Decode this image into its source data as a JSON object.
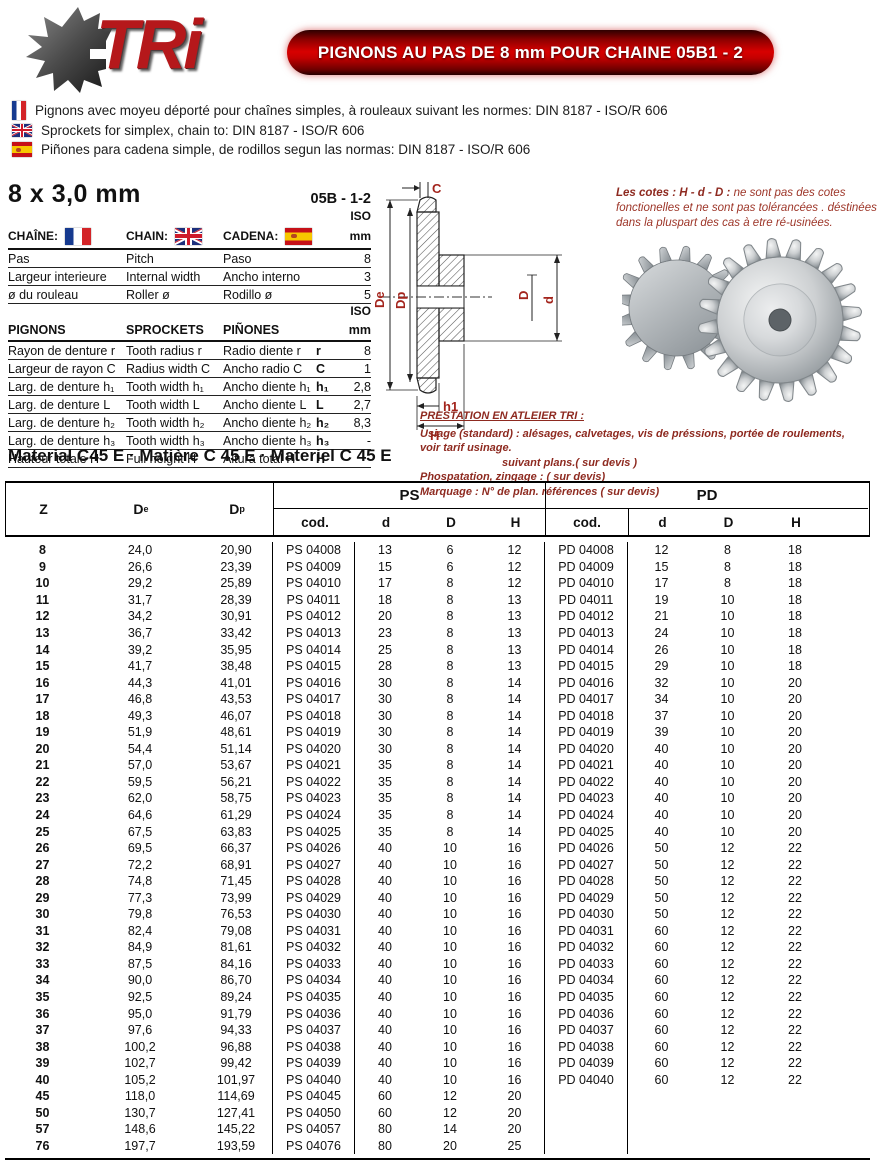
{
  "colors": {
    "banner_red": "#cc0000",
    "note_red": "#9d3528",
    "drawing_label_red": "#a3241c"
  },
  "header": {
    "logo_text": "TRi",
    "banner": "PIGNONS AU PAS DE 8 mm POUR CHAINE 05B1 - 2"
  },
  "intro": {
    "lines": [
      {
        "flag": "flag-france",
        "text": "Pignons avec moyeu déporté pour chaînes simples, à rouleaux suivant les normes: DIN 8187 - ISO/R 606"
      },
      {
        "flag": "flag-uk",
        "text": "Sprockets for simplex, chain to: DIN 8187 - ISO/R 606"
      },
      {
        "flag": "flag-spain",
        "text": "Piñones para cadena simple, de rodillos segun las normas: DIN 8187 - ISO/R 606"
      }
    ]
  },
  "spec": {
    "title": "8 x 3,0 mm",
    "ref": "05B - 1-2",
    "iso_label": "ISO",
    "mm_label": "mm",
    "chain_label_fr": "CHAÎNE:",
    "chain_label_en": "CHAIN:",
    "chain_label_es": "CADENA:",
    "chain_rows": [
      [
        "Pas",
        "Pitch",
        "Paso",
        "",
        "8"
      ],
      [
        "Largeur interieure",
        "Internal width",
        "Ancho interno",
        "",
        "3"
      ],
      [
        "ø du rouleau",
        "Roller ø",
        "Rodillo ø",
        "",
        "5"
      ]
    ],
    "pignons_label_fr": "PIGNONS",
    "pignons_label_en": "SPROCKETS",
    "pignons_label_es": "PIÑONES",
    "pignon_rows": [
      [
        "Rayon de denture r",
        "Tooth radius r",
        "Radio diente r",
        "r",
        "8"
      ],
      [
        "Largeur de rayon C",
        "Radius width C",
        "Ancho radio C",
        "C",
        "1"
      ],
      [
        "Larg. de denture h₁",
        "Tooth width h₁",
        "Ancho diente h₁",
        "h₁",
        "2,8"
      ],
      [
        "Larg. de denture L",
        "Tooth width L",
        "Ancho diente L",
        "L",
        "2,7"
      ],
      [
        "Larg. de denture h₂",
        "Tooth width h₂",
        "Ancho diente h₂",
        "h₂",
        "8,3"
      ],
      [
        "Larg. de denture h₃",
        "Tooth width h₃",
        "Ancho diente h₃",
        "h₃",
        "-"
      ],
      [
        "Hauteur totale H",
        "Full height H",
        "Altura total H",
        "H",
        "-"
      ]
    ]
  },
  "drawing": {
    "labels": {
      "c": "C",
      "de": "De",
      "dp": "Dp",
      "big_d": "D",
      "small_d": "d",
      "h1": "h1",
      "h": "H"
    }
  },
  "notes": {
    "cotes_lead": "Les cotes : H - d - D : ",
    "cotes_rest": "ne sont pas des cotes fonctionelles et ne sont pas tolérancées . déstinées dans la pluspart des cas à etre ré-usinées.",
    "prestation_title": "PRESTATION EN ATLEIER   TRI :",
    "prestation_line1": "Usiage  (standard) : alésages, calvetages, vis de préssions, portée de roulements,  voir tarif usinage.",
    "prestation_line2": "suivant plans.( sur devis )",
    "prestation_line3": "Phospatation, zingage : ( sur devis)",
    "prestation_line4": "Marquage : N° de plan. références ( sur devis)"
  },
  "material": "Material C45 E · Matière C 45 E · Materiel C 45 E",
  "table": {
    "headers": {
      "z": "Z",
      "de_main": "D",
      "de_sub": "e",
      "dp_main": "D",
      "dp_sub": "p",
      "ps": "PS",
      "pd": "PD",
      "ps_cols": [
        "cod.",
        "d",
        "D",
        "H"
      ],
      "pd_cols": [
        "cod.",
        "d",
        "D",
        "H"
      ]
    },
    "rows": [
      [
        "8",
        "24,0",
        "20,90",
        "PS 04008",
        "13",
        "6",
        "12",
        "PD 04008",
        "12",
        "8",
        "18",
        ""
      ],
      [
        "9",
        "26,6",
        "23,39",
        "PS 04009",
        "15",
        "6",
        "12",
        "PD 04009",
        "15",
        "8",
        "18",
        ""
      ],
      [
        "10",
        "29,2",
        "25,89",
        "PS 04010",
        "17",
        "8",
        "12",
        "PD 04010",
        "17",
        "8",
        "18",
        ""
      ],
      [
        "11",
        "31,7",
        "28,39",
        "PS 04011",
        "18",
        "8",
        "13",
        "PD 04011",
        "19",
        "10",
        "18",
        ""
      ],
      [
        "12",
        "34,2",
        "30,91",
        "PS 04012",
        "20",
        "8",
        "13",
        "PD 04012",
        "21",
        "10",
        "18",
        ""
      ],
      [
        "13",
        "36,7",
        "33,42",
        "PS 04013",
        "23",
        "8",
        "13",
        "PD 04013",
        "24",
        "10",
        "18",
        ""
      ],
      [
        "14",
        "39,2",
        "35,95",
        "PS 04014",
        "25",
        "8",
        "13",
        "PD 04014",
        "26",
        "10",
        "18",
        ""
      ],
      [
        "15",
        "41,7",
        "38,48",
        "PS 04015",
        "28",
        "8",
        "13",
        "PD 04015",
        "29",
        "10",
        "18",
        ""
      ],
      [
        "16",
        "44,3",
        "41,01",
        "PS 04016",
        "30",
        "8",
        "14",
        "PD 04016",
        "32",
        "10",
        "20",
        ""
      ],
      [
        "17",
        "46,8",
        "43,53",
        "PS 04017",
        "30",
        "8",
        "14",
        "PD 04017",
        "34",
        "10",
        "20",
        ""
      ],
      [
        "18",
        "49,3",
        "46,07",
        "PS 04018",
        "30",
        "8",
        "14",
        "PD 04018",
        "37",
        "10",
        "20",
        ""
      ],
      [
        "19",
        "51,9",
        "48,61",
        "PS 04019",
        "30",
        "8",
        "14",
        "PD 04019",
        "39",
        "10",
        "20",
        ""
      ],
      [
        "20",
        "54,4",
        "51,14",
        "PS 04020",
        "30",
        "8",
        "14",
        "PD 04020",
        "40",
        "10",
        "20",
        ""
      ],
      [
        "21",
        "57,0",
        "53,67",
        "PS 04021",
        "35",
        "8",
        "14",
        "PD 04021",
        "40",
        "10",
        "20",
        ""
      ],
      [
        "22",
        "59,5",
        "56,21",
        "PS 04022",
        "35",
        "8",
        "14",
        "PD 04022",
        "40",
        "10",
        "20",
        ""
      ],
      [
        "23",
        "62,0",
        "58,75",
        "PS 04023",
        "35",
        "8",
        "14",
        "PD 04023",
        "40",
        "10",
        "20",
        ""
      ],
      [
        "24",
        "64,6",
        "61,29",
        "PS 04024",
        "35",
        "8",
        "14",
        "PD 04024",
        "40",
        "10",
        "20",
        ""
      ],
      [
        "25",
        "67,5",
        "63,83",
        "PS 04025",
        "35",
        "8",
        "14",
        "PD 04025",
        "40",
        "10",
        "20",
        ""
      ],
      [
        "26",
        "69,5",
        "66,37",
        "PS 04026",
        "40",
        "10",
        "16",
        "PD 04026",
        "50",
        "12",
        "22",
        ""
      ],
      [
        "27",
        "72,2",
        "68,91",
        "PS 04027",
        "40",
        "10",
        "16",
        "PD 04027",
        "50",
        "12",
        "22",
        ""
      ],
      [
        "28",
        "74,8",
        "71,45",
        "PS 04028",
        "40",
        "10",
        "16",
        "PD 04028",
        "50",
        "12",
        "22",
        ""
      ],
      [
        "29",
        "77,3",
        "73,99",
        "PS 04029",
        "40",
        "10",
        "16",
        "PD 04029",
        "50",
        "12",
        "22",
        ""
      ],
      [
        "30",
        "79,8",
        "76,53",
        "PS 04030",
        "40",
        "10",
        "16",
        "PD 04030",
        "50",
        "12",
        "22",
        ""
      ],
      [
        "31",
        "82,4",
        "79,08",
        "PS 04031",
        "40",
        "10",
        "16",
        "PD 04031",
        "60",
        "12",
        "22",
        ""
      ],
      [
        "32",
        "84,9",
        "81,61",
        "PS 04032",
        "40",
        "10",
        "16",
        "PD 04032",
        "60",
        "12",
        "22",
        ""
      ],
      [
        "33",
        "87,5",
        "84,16",
        "PS 04033",
        "40",
        "10",
        "16",
        "PD 04033",
        "60",
        "12",
        "22",
        ""
      ],
      [
        "34",
        "90,0",
        "86,70",
        "PS 04034",
        "40",
        "10",
        "16",
        "PD 04034",
        "60",
        "12",
        "22",
        ""
      ],
      [
        "35",
        "92,5",
        "89,24",
        "PS 04035",
        "40",
        "10",
        "16",
        "PD 04035",
        "60",
        "12",
        "22",
        ""
      ],
      [
        "36",
        "95,0",
        "91,79",
        "PS 04036",
        "40",
        "10",
        "16",
        "PD 04036",
        "60",
        "12",
        "22",
        ""
      ],
      [
        "37",
        "97,6",
        "94,33",
        "PS 04037",
        "40",
        "10",
        "16",
        "PD 04037",
        "60",
        "12",
        "22",
        ""
      ],
      [
        "38",
        "100,2",
        "96,88",
        "PS 04038",
        "40",
        "10",
        "16",
        "PD 04038",
        "60",
        "12",
        "22",
        ""
      ],
      [
        "39",
        "102,7",
        "99,42",
        "PS 04039",
        "40",
        "10",
        "16",
        "PD 04039",
        "60",
        "12",
        "22",
        ""
      ],
      [
        "40",
        "105,2",
        "101,97",
        "PS 04040",
        "40",
        "10",
        "16",
        "PD 04040",
        "60",
        "12",
        "22",
        ""
      ],
      [
        "45",
        "118,0",
        "114,69",
        "PS 04045",
        "60",
        "12",
        "20",
        "",
        "",
        "",
        "",
        ""
      ],
      [
        "50",
        "130,7",
        "127,41",
        "PS 04050",
        "60",
        "12",
        "20",
        "",
        "",
        "",
        "",
        ""
      ],
      [
        "57",
        "148,6",
        "145,22",
        "PS 04057",
        "80",
        "14",
        "20",
        "",
        "",
        "",
        "",
        ""
      ],
      [
        "76",
        "197,7",
        "193,59",
        "PS 04076",
        "80",
        "20",
        "25",
        "",
        "",
        "",
        "",
        ""
      ]
    ]
  }
}
